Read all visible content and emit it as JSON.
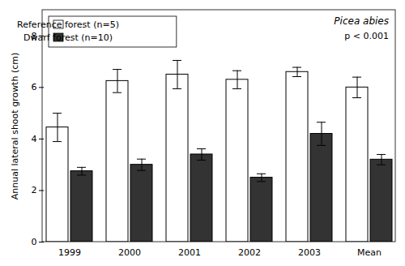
{
  "chart_data": {
    "type": "bar",
    "categories": [
      "1999",
      "2000",
      "2001",
      "2002",
      "2003",
      "Mean"
    ],
    "series": [
      {
        "name": "Reference forest (n=5)",
        "color": "#ffffff",
        "values": [
          4.45,
          6.25,
          6.5,
          6.3,
          6.6,
          6.0
        ],
        "errors": [
          0.55,
          0.45,
          0.55,
          0.35,
          0.18,
          0.4
        ]
      },
      {
        "name": "Dwarf forest (n=10)",
        "color": "#333333",
        "values": [
          2.75,
          3.0,
          3.4,
          2.5,
          4.2,
          3.2
        ],
        "errors": [
          0.15,
          0.22,
          0.22,
          0.15,
          0.45,
          0.2
        ]
      }
    ],
    "ylabel": "Annual lateral shoot growth (cm)",
    "ylim": [
      0,
      9
    ],
    "yticks": [
      0,
      2,
      4,
      6,
      8
    ],
    "grid": false,
    "legend": "upper left",
    "annotations": [
      "Picea abies",
      "p < 0.001"
    ]
  }
}
